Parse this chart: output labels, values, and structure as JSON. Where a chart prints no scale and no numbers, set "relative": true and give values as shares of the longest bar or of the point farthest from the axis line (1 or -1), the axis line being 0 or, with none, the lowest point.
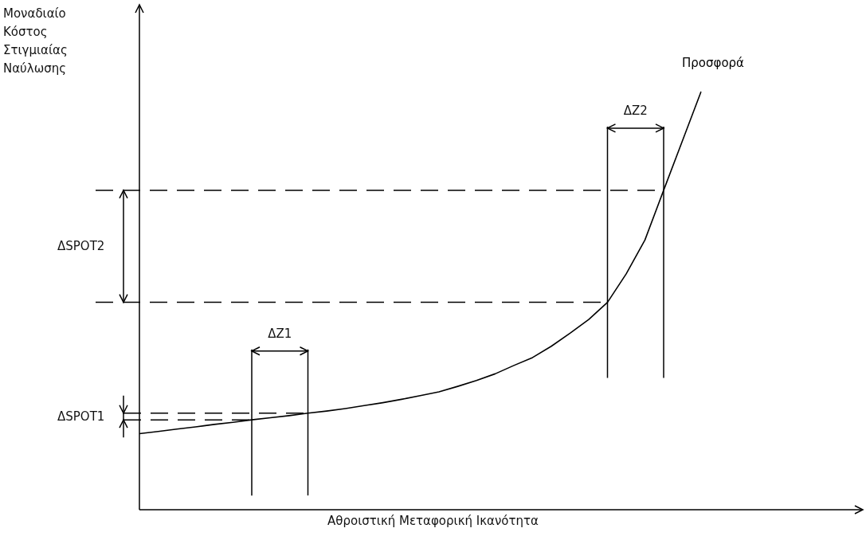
{
  "chart_data": {
    "type": "line",
    "relative": true,
    "xlabel": "Αθροιστική Μεταφορική Ικανότητα",
    "legend": false,
    "marker": "none",
    "categories": [
      null,
      null,
      null,
      null,
      null,
      null,
      null,
      null,
      null,
      null,
      null,
      null,
      null,
      null,
      null,
      null,
      null,
      null,
      null,
      null,
      null,
      null,
      null,
      null,
      null,
      null,
      null,
      null,
      null,
      null,
      null
    ],
    "series": [
      {
        "name": "Προσφορά",
        "color": "#000000",
        "values": [
          0.182,
          0.187,
          0.193,
          0.198,
          0.204,
          0.209,
          0.215,
          0.22,
          0.225,
          0.231,
          0.236,
          0.242,
          0.249,
          0.256,
          0.264,
          0.273,
          0.282,
          0.295,
          0.309,
          0.325,
          0.345,
          0.364,
          0.391,
          0.422,
          0.455,
          0.496,
          0.564,
          0.645,
          0.764,
          0.882,
          1
        ]
      }
    ],
    "ref_lines": [
      {
        "axis": "y",
        "value": 0.215,
        "line_style": "dashed",
        "color": "#000000"
      },
      {
        "axis": "y",
        "value": 0.231,
        "line_style": "dashed",
        "color": "#000000"
      },
      {
        "axis": "y",
        "value": 0.496,
        "line_style": "dashed",
        "color": "#000000"
      },
      {
        "axis": "y",
        "value": 0.764,
        "line_style": "dashed",
        "color": "#000000"
      }
    ],
    "annotations": [
      "ΔSPOT1",
      "ΔSPOT2",
      "ΔZ1",
      "ΔZ2",
      "Μοναδιαίο Κόστος Στιγμιαίας Ναύλωσης"
    ]
  }
}
